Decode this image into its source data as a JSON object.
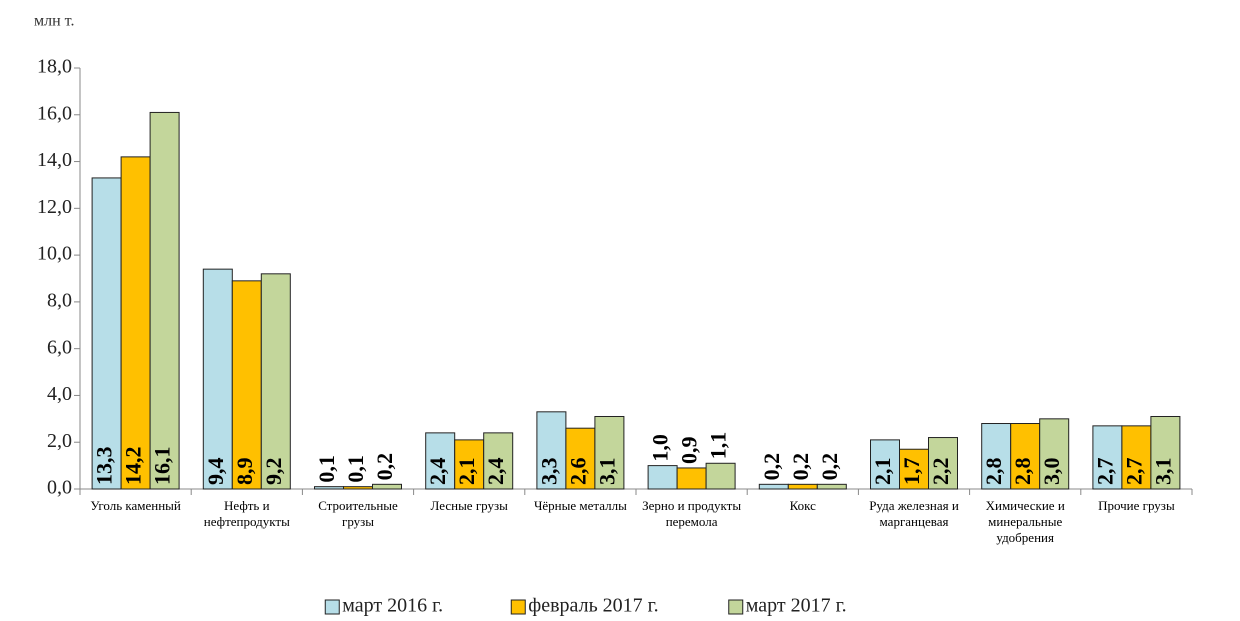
{
  "chart_data": {
    "type": "bar",
    "y_axis_label": "млн т.",
    "categories": [
      "Уголь каменный",
      "Нефть и нефтепродукты",
      "Строительные грузы",
      "Лесные грузы",
      "Чёрные металлы",
      "Зерно и продукты перемола",
      "Кокс",
      "Руда железная и марганцевая",
      "Химические и минеральные удобрения",
      "Прочие грузы"
    ],
    "series": [
      {
        "name": "март 2016 г.",
        "color": "#b7dee8",
        "values": [
          13.3,
          9.4,
          0.1,
          2.4,
          3.3,
          1.0,
          0.2,
          2.1,
          2.8,
          2.7
        ],
        "value_labels": [
          "13,3",
          "9,4",
          "0,1",
          "2,4",
          "3,3",
          "1,0",
          "0,2",
          "2,1",
          "2,8",
          "2,7"
        ]
      },
      {
        "name": "февраль 2017 г.",
        "color": "#ffc000",
        "values": [
          14.2,
          8.9,
          0.1,
          2.1,
          2.6,
          0.9,
          0.2,
          1.7,
          2.8,
          2.7
        ],
        "value_labels": [
          "14,2",
          "8,9",
          "0,1",
          "2,1",
          "2,6",
          "0,9",
          "0,2",
          "1,7",
          "2,8",
          "2,7"
        ]
      },
      {
        "name": "март 2017 г.",
        "color": "#c3d69b",
        "values": [
          16.1,
          9.2,
          0.2,
          2.4,
          3.1,
          1.1,
          0.2,
          2.2,
          3.0,
          3.1
        ],
        "value_labels": [
          "16,1",
          "9,2",
          "0,2",
          "2,4",
          "3,1",
          "1,1",
          "0,2",
          "2,2",
          "3,0",
          "3,1"
        ]
      }
    ],
    "ylim": [
      0,
      18
    ],
    "yticks": [
      {
        "value": 0,
        "label": "0,0"
      },
      {
        "value": 2,
        "label": "2,0"
      },
      {
        "value": 4,
        "label": "4,0"
      },
      {
        "value": 6,
        "label": "6,0"
      },
      {
        "value": 8,
        "label": "8,0"
      },
      {
        "value": 10,
        "label": "10,0"
      },
      {
        "value": 12,
        "label": "12,0"
      },
      {
        "value": 14,
        "label": "14,0"
      },
      {
        "value": 16,
        "label": "16,0"
      },
      {
        "value": 18,
        "label": "18,0"
      }
    ],
    "legend": "bottom"
  }
}
